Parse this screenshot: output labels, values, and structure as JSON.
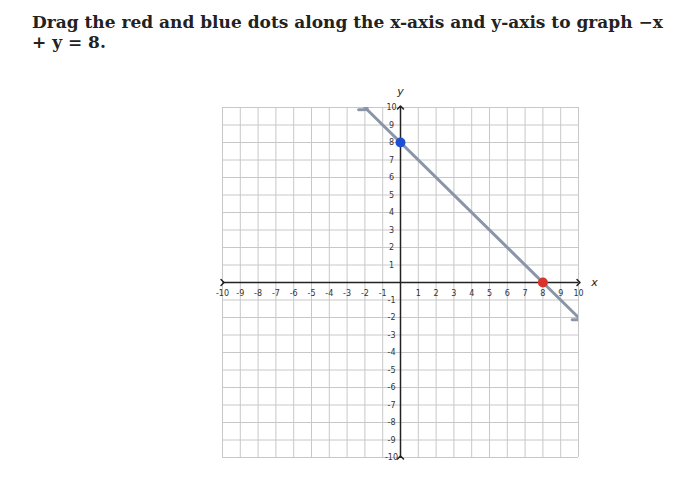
{
  "chart_data": {
    "type": "line",
    "title": "Drag the red and blue dots along the x-axis and y-axis to graph −x + y = 8.",
    "x_label": "x",
    "y_label": "y",
    "xlim": [
      -10,
      10
    ],
    "ylim": [
      -10,
      10
    ],
    "xticks": [
      -10,
      -9,
      -8,
      -7,
      -6,
      -5,
      -4,
      -3,
      -2,
      -1,
      1,
      2,
      3,
      4,
      5,
      6,
      7,
      8,
      9,
      10
    ],
    "yticks": [
      -10,
      -9,
      -8,
      -7,
      -6,
      -5,
      -4,
      -3,
      -2,
      -1,
      1,
      2,
      3,
      4,
      5,
      6,
      7,
      8,
      9,
      10
    ],
    "grid": true,
    "series": [
      {
        "type": "line",
        "color": "#8a96a8",
        "x": [
          -2,
          10
        ],
        "values": [
          10,
          -2
        ]
      },
      {
        "type": "scatter",
        "colors": [
          "#1f4fd1",
          "#d9342b"
        ],
        "x": [
          0,
          8
        ],
        "values": [
          8,
          0
        ]
      }
    ]
  }
}
